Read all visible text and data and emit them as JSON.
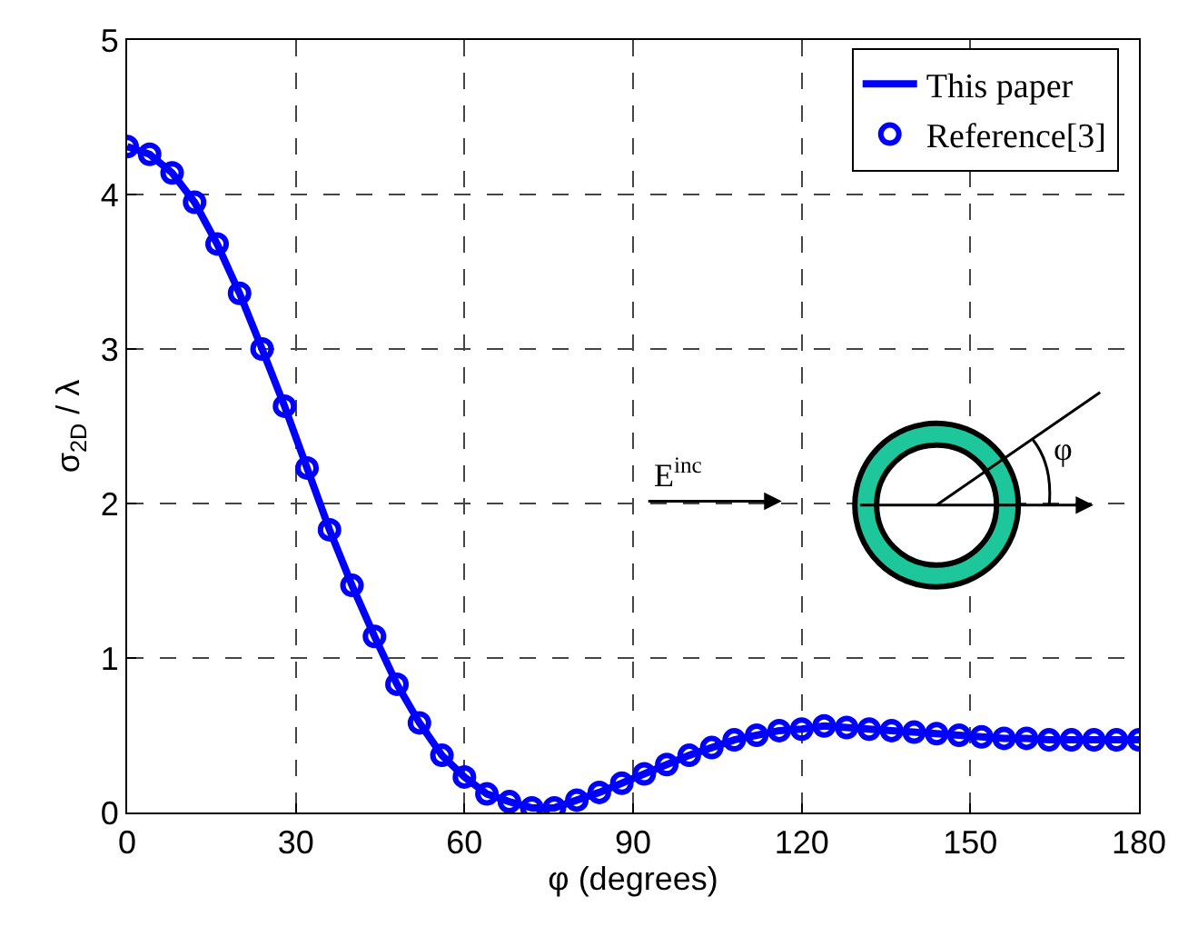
{
  "chart_data": {
    "type": "line",
    "xlabel": "φ (degrees)",
    "ylabel": "σ$_{2D}$ / λ",
    "x": [
      0,
      4,
      8,
      12,
      16,
      20,
      24,
      28,
      32,
      36,
      40,
      44,
      48,
      52,
      56,
      60,
      64,
      68,
      72,
      76,
      80,
      84,
      88,
      92,
      96,
      100,
      104,
      108,
      112,
      116,
      120,
      124,
      128,
      132,
      136,
      140,
      144,
      148,
      152,
      156,
      160,
      164,
      168,
      172,
      176,
      180
    ],
    "series": [
      {
        "name": "This paper",
        "color": "#0000ff",
        "marker": "none",
        "line_style": "solid",
        "values": [
          4.31,
          4.26,
          4.14,
          3.95,
          3.68,
          3.36,
          3.0,
          2.63,
          2.23,
          1.83,
          1.47,
          1.14,
          0.83,
          0.58,
          0.37,
          0.23,
          0.12,
          0.07,
          0.03,
          0.03,
          0.08,
          0.13,
          0.19,
          0.25,
          0.31,
          0.37,
          0.42,
          0.47,
          0.5,
          0.53,
          0.54,
          0.56,
          0.55,
          0.54,
          0.53,
          0.52,
          0.51,
          0.5,
          0.49,
          0.48,
          0.48,
          0.47,
          0.47,
          0.47,
          0.47,
          0.47
        ]
      },
      {
        "name": "Reference[3]",
        "type": "scatter",
        "color": "#0000ff",
        "marker": "circle",
        "values": [
          4.31,
          4.26,
          4.14,
          3.95,
          3.68,
          3.36,
          3.0,
          2.63,
          2.23,
          1.83,
          1.47,
          1.14,
          0.83,
          0.58,
          0.37,
          0.23,
          0.12,
          0.07,
          0.03,
          0.03,
          0.08,
          0.13,
          0.19,
          0.25,
          0.31,
          0.37,
          0.42,
          0.47,
          0.5,
          0.53,
          0.54,
          0.56,
          0.55,
          0.54,
          0.53,
          0.52,
          0.51,
          0.5,
          0.49,
          0.48,
          0.48,
          0.47,
          0.47,
          0.47,
          0.47,
          0.47
        ]
      }
    ],
    "xlim": [
      0,
      180
    ],
    "xticks": [
      0,
      30,
      60,
      90,
      120,
      150,
      180
    ],
    "ylim": [
      0,
      5
    ],
    "yticks": [
      0,
      1,
      2,
      3,
      4,
      5
    ],
    "grid": true,
    "legend": "top right",
    "annotations": [
      "E$^{inc}$",
      "φ"
    ]
  }
}
